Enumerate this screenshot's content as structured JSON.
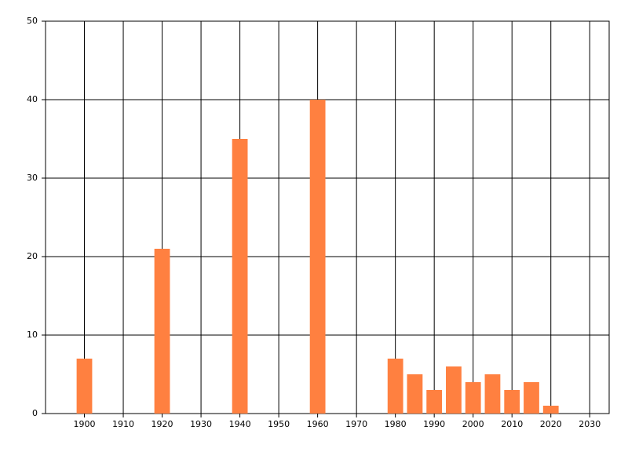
{
  "chart_data": {
    "type": "bar",
    "x": [
      1900,
      1920,
      1940,
      1960,
      1980,
      1985,
      1990,
      1995,
      2000,
      2005,
      2010,
      2015,
      2020
    ],
    "values": [
      7,
      21,
      35,
      40,
      7,
      5,
      3,
      6,
      4,
      5,
      3,
      4,
      1
    ],
    "color": "#ff8040",
    "xlim": [
      1890,
      2035
    ],
    "xticks": [
      1900,
      1910,
      1920,
      1930,
      1940,
      1950,
      1960,
      1970,
      1980,
      1990,
      2000,
      2010,
      2020,
      2030
    ],
    "ylim": [
      0,
      50
    ],
    "yticks": [
      0,
      10,
      20,
      30,
      40,
      50
    ],
    "grid": true
  }
}
